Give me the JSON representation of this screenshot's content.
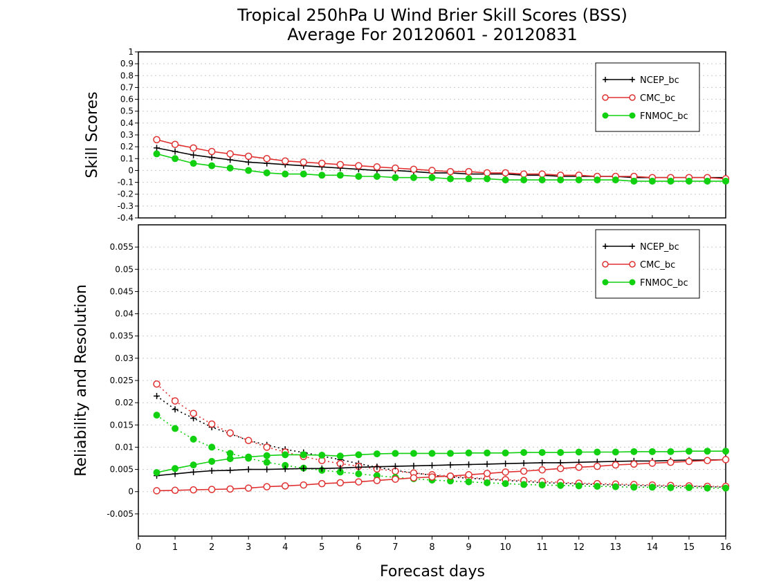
{
  "title": {
    "line1": "Tropical 250hPa U Wind Brier Skill Scores (BSS)",
    "line2": "Average For 20120601 - 20120831"
  },
  "colors": {
    "ncep": "#000000",
    "cmc": "#e03030",
    "fnmoc": "#10d010"
  },
  "chart_data": [
    {
      "type": "line",
      "ylabel": "Skill Scores",
      "xlabel": "",
      "xlim": [
        0,
        16
      ],
      "ylim": [
        -0.4,
        1
      ],
      "yticks": [
        "-0.4",
        "-0.3",
        "-0.2",
        "-0.1",
        "0",
        "0.1",
        "0.2",
        "0.3",
        "0.4",
        "0.5",
        "0.6",
        "0.7",
        "0.8",
        "0.9",
        "1"
      ],
      "grid": true,
      "legend_position": "top-right",
      "x": [
        0.5,
        1,
        1.5,
        2,
        2.5,
        3,
        3.5,
        4,
        4.5,
        5,
        5.5,
        6,
        6.5,
        7,
        7.5,
        8,
        8.5,
        9,
        9.5,
        10,
        10.5,
        11,
        11.5,
        12,
        12.5,
        13,
        13.5,
        14,
        14.5,
        15,
        15.5,
        16
      ],
      "series": [
        {
          "name": "NCEP_bc",
          "marker": "plus",
          "line": "solid",
          "color": "#000000",
          "values": [
            0.19,
            0.16,
            0.13,
            0.11,
            0.09,
            0.07,
            0.06,
            0.05,
            0.04,
            0.03,
            0.02,
            0.01,
            0,
            0,
            -0.01,
            -0.02,
            -0.02,
            -0.03,
            -0.03,
            -0.03,
            -0.04,
            -0.04,
            -0.05,
            -0.05,
            -0.05,
            -0.05,
            -0.06,
            -0.06,
            -0.06,
            -0.06,
            -0.06,
            -0.06
          ]
        },
        {
          "name": "CMC_bc",
          "marker": "open-circle",
          "line": "solid",
          "color": "#e03030",
          "values": [
            0.26,
            0.22,
            0.19,
            0.16,
            0.14,
            0.12,
            0.1,
            0.08,
            0.07,
            0.06,
            0.05,
            0.04,
            0.03,
            0.02,
            0.01,
            0,
            -0.01,
            -0.01,
            -0.02,
            -0.02,
            -0.03,
            -0.03,
            -0.04,
            -0.04,
            -0.05,
            -0.05,
            -0.05,
            -0.06,
            -0.06,
            -0.06,
            -0.06,
            -0.07
          ]
        },
        {
          "name": "FNMOC_bc",
          "marker": "filled-circle",
          "line": "solid",
          "color": "#10d010",
          "values": [
            0.14,
            0.1,
            0.06,
            0.04,
            0.02,
            0,
            -0.02,
            -0.03,
            -0.03,
            -0.04,
            -0.04,
            -0.05,
            -0.05,
            -0.06,
            -0.06,
            -0.06,
            -0.07,
            -0.07,
            -0.07,
            -0.08,
            -0.08,
            -0.08,
            -0.08,
            -0.08,
            -0.08,
            -0.08,
            -0.09,
            -0.09,
            -0.09,
            -0.09,
            -0.09,
            -0.09
          ]
        }
      ]
    },
    {
      "type": "line",
      "ylabel": "Reliability and Resolution",
      "xlabel": "Forecast days",
      "xlim": [
        0,
        16
      ],
      "ylim": [
        -0.01,
        0.06
      ],
      "yticks": [
        "-0.005",
        "0",
        "0.005",
        "0.01",
        "0.015",
        "0.02",
        "0.025",
        "0.03",
        "0.035",
        "0.04",
        "0.045",
        "0.05",
        "0.055"
      ],
      "xticks": [
        "0",
        "1",
        "2",
        "3",
        "4",
        "5",
        "6",
        "7",
        "8",
        "9",
        "10",
        "11",
        "12",
        "13",
        "14",
        "15",
        "16"
      ],
      "grid": true,
      "legend_position": "top-right",
      "x": [
        0.5,
        1,
        1.5,
        2,
        2.5,
        3,
        3.5,
        4,
        4.5,
        5,
        5.5,
        6,
        6.5,
        7,
        7.5,
        8,
        8.5,
        9,
        9.5,
        10,
        10.5,
        11,
        11.5,
        12,
        12.5,
        13,
        13.5,
        14,
        14.5,
        15,
        15.5,
        16
      ],
      "series": [
        {
          "name": "NCEP_bc",
          "metric": "reliability",
          "marker": "plus",
          "line": "dotted",
          "color": "#000000",
          "values": [
            0.0215,
            0.0185,
            0.0165,
            0.0145,
            0.013,
            0.0115,
            0.0105,
            0.0095,
            0.0088,
            0.008,
            0.0072,
            0.0063,
            0.0055,
            0.0048,
            0.0042,
            0.0037,
            0.0033,
            0.003,
            0.0028,
            0.0025,
            0.0023,
            0.002,
            0.0019,
            0.0017,
            0.0016,
            0.0015,
            0.0014,
            0.0013,
            0.0012,
            0.0012,
            0.0011,
            0.001
          ]
        },
        {
          "name": "CMC_bc",
          "metric": "reliability",
          "marker": "open-circle",
          "line": "dotted",
          "color": "#e03030",
          "values": [
            0.0242,
            0.0204,
            0.0176,
            0.0152,
            0.0132,
            0.0115,
            0.01,
            0.0089,
            0.0079,
            0.007,
            0.0063,
            0.0057,
            0.0051,
            0.0046,
            0.0042,
            0.0038,
            0.0035,
            0.0032,
            0.0029,
            0.0027,
            0.0025,
            0.0023,
            0.0021,
            0.0019,
            0.0018,
            0.0017,
            0.0016,
            0.0015,
            0.0014,
            0.0013,
            0.0012,
            0.0012
          ]
        },
        {
          "name": "FNMOC_bc",
          "metric": "reliability",
          "marker": "filled-circle",
          "line": "dotted",
          "color": "#10d010",
          "values": [
            0.0172,
            0.0142,
            0.0118,
            0.01,
            0.0086,
            0.0075,
            0.0066,
            0.0059,
            0.0053,
            0.0048,
            0.0044,
            0.004,
            0.0036,
            0.0032,
            0.0029,
            0.0026,
            0.0024,
            0.0022,
            0.002,
            0.0018,
            0.0016,
            0.0015,
            0.0014,
            0.0013,
            0.0012,
            0.0011,
            0.001,
            0.001,
            0.0009,
            0.0009,
            0.0008,
            0.0008
          ]
        },
        {
          "name": "NCEP_bc",
          "metric": "resolution",
          "marker": "plus",
          "line": "solid",
          "color": "#000000",
          "values": [
            0.0036,
            0.004,
            0.0044,
            0.0047,
            0.0048,
            0.005,
            0.005,
            0.0051,
            0.0052,
            0.0052,
            0.0053,
            0.0055,
            0.0056,
            0.0057,
            0.0058,
            0.0059,
            0.006,
            0.0061,
            0.0062,
            0.0063,
            0.0064,
            0.0065,
            0.0065,
            0.0066,
            0.0067,
            0.0068,
            0.0069,
            0.0069,
            0.007,
            0.0071,
            0.0071,
            0.0072
          ]
        },
        {
          "name": "CMC_bc",
          "metric": "resolution",
          "marker": "open-circle",
          "line": "solid",
          "color": "#e03030",
          "values": [
            0.0002,
            0.0003,
            0.0004,
            0.0005,
            0.0006,
            0.0008,
            0.0011,
            0.0013,
            0.0015,
            0.0018,
            0.002,
            0.0022,
            0.0025,
            0.0028,
            0.0031,
            0.0033,
            0.0035,
            0.0038,
            0.0041,
            0.0044,
            0.0046,
            0.0049,
            0.0052,
            0.0055,
            0.0057,
            0.006,
            0.0062,
            0.0064,
            0.0066,
            0.0068,
            0.007,
            0.0072
          ]
        },
        {
          "name": "FNMOC_bc",
          "metric": "resolution",
          "marker": "filled-circle",
          "line": "solid",
          "color": "#10d010",
          "values": [
            0.0043,
            0.0052,
            0.006,
            0.0068,
            0.0074,
            0.0078,
            0.0081,
            0.0083,
            0.0083,
            0.0082,
            0.008,
            0.0083,
            0.0085,
            0.0086,
            0.0086,
            0.0086,
            0.0086,
            0.0087,
            0.0087,
            0.0087,
            0.0088,
            0.0088,
            0.0088,
            0.0089,
            0.0089,
            0.0089,
            0.009,
            0.009,
            0.009,
            0.0091,
            0.0091,
            0.0091
          ]
        }
      ]
    }
  ]
}
